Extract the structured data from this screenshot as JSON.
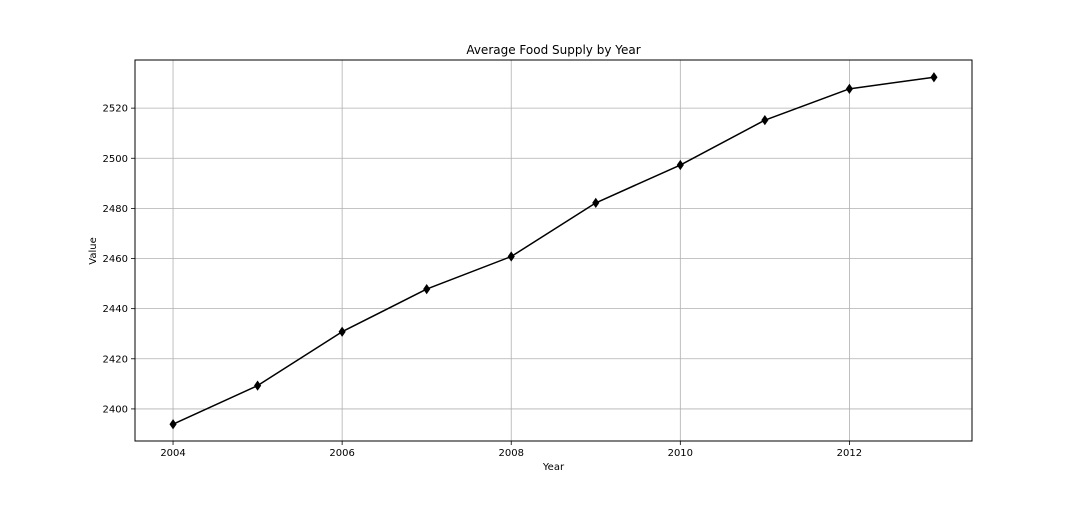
{
  "chart_data": {
    "type": "line",
    "title": "Average Food Supply by Year",
    "xlabel": "Year",
    "ylabel": "Value",
    "xlim": [
      2003.55,
      2013.45
    ],
    "ylim": [
      2387.2,
      2539.2
    ],
    "xticks": [
      2004,
      2006,
      2008,
      2010,
      2012
    ],
    "yticks": [
      2400,
      2420,
      2440,
      2460,
      2480,
      2500,
      2520
    ],
    "grid": true,
    "legend": "none",
    "series": [
      {
        "color": "#000000",
        "marker": "thin-diamond",
        "x": [
          2004,
          2005,
          2006,
          2007,
          2008,
          2009,
          2010,
          2011,
          2012,
          2013
        ],
        "y": [
          2393.9,
          2409.3,
          2430.8,
          2447.8,
          2460.8,
          2482.2,
          2497.3,
          2515.2,
          2527.7,
          2532.3
        ]
      }
    ]
  }
}
